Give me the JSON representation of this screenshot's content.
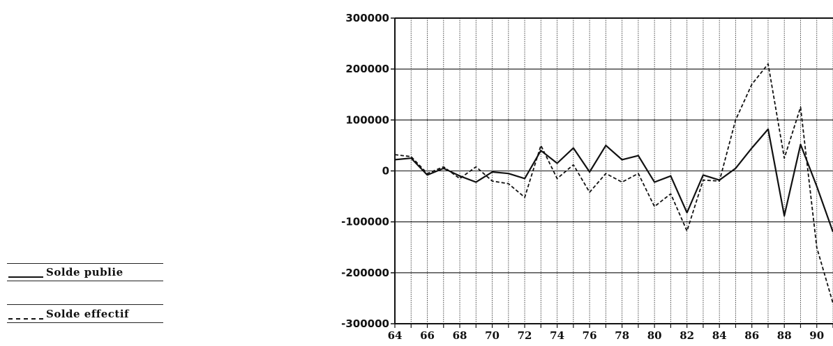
{
  "chart_data": {
    "type": "line",
    "title": "",
    "xlabel": "",
    "ylabel": "",
    "x": [
      64,
      65,
      66,
      67,
      68,
      69,
      70,
      71,
      72,
      73,
      74,
      75,
      76,
      77,
      78,
      79,
      80,
      81,
      82,
      83,
      84,
      85,
      86,
      87,
      88,
      89,
      90,
      91
    ],
    "x_ticks": [
      64,
      66,
      68,
      70,
      72,
      74,
      76,
      78,
      80,
      82,
      84,
      86,
      88,
      90
    ],
    "x_tick_labels": [
      "64",
      "66",
      "68",
      "70",
      "72",
      "74",
      "76",
      "78",
      "80",
      "82",
      "84",
      "86",
      "88",
      "90"
    ],
    "y_ticks": [
      300000,
      200000,
      100000,
      0,
      -100000,
      -200000,
      -300000
    ],
    "y_tick_labels": [
      "300000",
      "200000",
      "100000",
      "0",
      "-100000",
      "-200000",
      "-300000"
    ],
    "xlim": [
      64,
      91
    ],
    "ylim": [
      -300000,
      300000
    ],
    "grid": true,
    "legend_position": "left",
    "series": [
      {
        "name": "Solde publie",
        "style": "solid",
        "color": "#111111",
        "values": [
          22000,
          25000,
          -8000,
          5000,
          -10000,
          -22000,
          -2000,
          -5000,
          -15000,
          40000,
          15000,
          45000,
          -2000,
          50000,
          22000,
          30000,
          -22000,
          -10000,
          -82000,
          -8000,
          -18000,
          5000,
          45000,
          82000,
          -88000,
          52000,
          -30000,
          -120000
        ]
      },
      {
        "name": "Solde effectif",
        "style": "dashed",
        "color": "#111111",
        "values": [
          32000,
          28000,
          -5000,
          8000,
          -15000,
          8000,
          -20000,
          -25000,
          -52000,
          50000,
          -15000,
          12000,
          -42000,
          -5000,
          -22000,
          -5000,
          -70000,
          -45000,
          -118000,
          -18000,
          -20000,
          100000,
          170000,
          210000,
          25000,
          125000,
          -150000,
          -260000
        ]
      }
    ]
  },
  "legend": [
    {
      "label": "Solde publie",
      "style": "solid"
    },
    {
      "label": "Solde effectif",
      "style": "dashed"
    }
  ]
}
